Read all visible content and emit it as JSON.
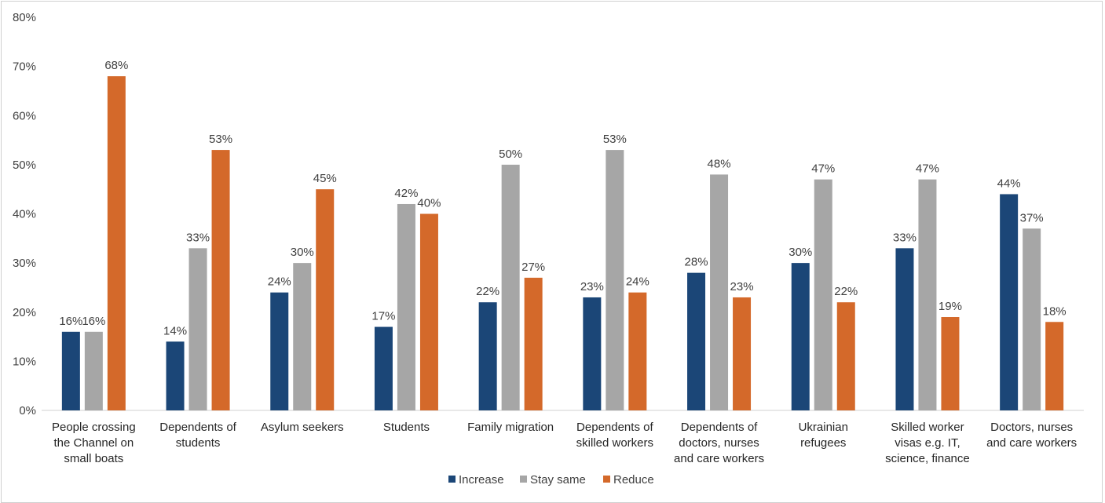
{
  "chart_data": {
    "type": "bar",
    "title": "",
    "xlabel": "",
    "ylabel": "",
    "ylim": [
      0,
      80
    ],
    "y_tick_step": 10,
    "y_tick_format": "percent",
    "grid": false,
    "legend_position": "bottom",
    "categories": [
      "People crossing the Channel on small boats",
      "Dependents of students",
      "Asylum seekers",
      "Students",
      "Family migration",
      "Dependents of skilled workers",
      "Dependents of doctors, nurses and care workers",
      "Ukrainian refugees",
      "Skilled worker visas e.g. IT, science, finance",
      "Doctors, nurses and care workers"
    ],
    "category_label_lines": [
      [
        "People crossing",
        "the Channel on",
        "small boats"
      ],
      [
        "Dependents of",
        "students"
      ],
      [
        "Asylum seekers"
      ],
      [
        "Students"
      ],
      [
        "Family migration"
      ],
      [
        "Dependents of",
        "skilled workers"
      ],
      [
        "Dependents of",
        "doctors, nurses",
        "and care workers"
      ],
      [
        "Ukrainian",
        "refugees"
      ],
      [
        "Skilled worker",
        "visas e.g. IT,",
        "science, finance"
      ],
      [
        "Doctors, nurses",
        "and care workers"
      ]
    ],
    "series": [
      {
        "name": "Increase",
        "color": "#1b4677",
        "values": [
          16,
          14,
          24,
          17,
          22,
          23,
          28,
          30,
          33,
          44
        ]
      },
      {
        "name": "Stay same",
        "color": "#a6a6a6",
        "values": [
          16,
          33,
          30,
          42,
          50,
          53,
          48,
          47,
          47,
          37
        ]
      },
      {
        "name": "Reduce",
        "color": "#d4692a",
        "values": [
          68,
          53,
          45,
          40,
          27,
          24,
          23,
          22,
          19,
          18
        ]
      }
    ]
  }
}
